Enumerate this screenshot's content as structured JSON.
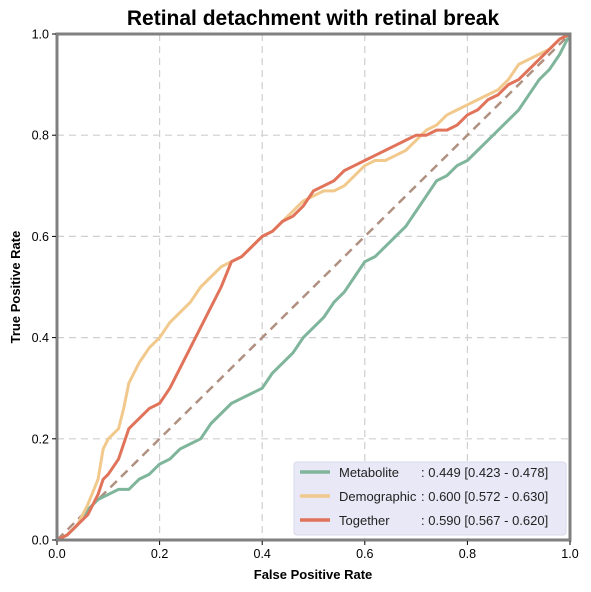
{
  "chart_data": {
    "type": "line",
    "title": "Retinal detachment with retinal break",
    "xlabel": "False Positive Rate",
    "ylabel": "True Positive Rate",
    "xlim": [
      0,
      1
    ],
    "ylim": [
      0,
      1
    ],
    "xticks": [
      "0.0",
      "0.2",
      "0.4",
      "0.6",
      "0.8",
      "1.0"
    ],
    "yticks": [
      "0.0",
      "0.2",
      "0.4",
      "0.6",
      "0.8",
      "1.0"
    ],
    "grid": true,
    "legend_position": "bottom-right",
    "diagonal": {
      "color": "#b09080",
      "style": "dashed",
      "points": [
        [
          0,
          0
        ],
        [
          1,
          1
        ]
      ]
    },
    "series": [
      {
        "name": "Metabolite",
        "legend_label": ": 0.449 [0.423 - 0.478]",
        "color": "#7fb59b",
        "points": [
          [
            0,
            0
          ],
          [
            0.02,
            0.01
          ],
          [
            0.04,
            0.03
          ],
          [
            0.06,
            0.06
          ],
          [
            0.08,
            0.08
          ],
          [
            0.1,
            0.09
          ],
          [
            0.12,
            0.1
          ],
          [
            0.14,
            0.1
          ],
          [
            0.16,
            0.12
          ],
          [
            0.18,
            0.13
          ],
          [
            0.2,
            0.15
          ],
          [
            0.22,
            0.16
          ],
          [
            0.24,
            0.18
          ],
          [
            0.26,
            0.19
          ],
          [
            0.28,
            0.2
          ],
          [
            0.3,
            0.23
          ],
          [
            0.32,
            0.25
          ],
          [
            0.34,
            0.27
          ],
          [
            0.36,
            0.28
          ],
          [
            0.38,
            0.29
          ],
          [
            0.4,
            0.3
          ],
          [
            0.42,
            0.33
          ],
          [
            0.44,
            0.35
          ],
          [
            0.46,
            0.37
          ],
          [
            0.48,
            0.4
          ],
          [
            0.5,
            0.42
          ],
          [
            0.52,
            0.44
          ],
          [
            0.54,
            0.47
          ],
          [
            0.56,
            0.49
          ],
          [
            0.58,
            0.52
          ],
          [
            0.6,
            0.55
          ],
          [
            0.62,
            0.56
          ],
          [
            0.64,
            0.58
          ],
          [
            0.66,
            0.6
          ],
          [
            0.68,
            0.62
          ],
          [
            0.7,
            0.65
          ],
          [
            0.72,
            0.68
          ],
          [
            0.74,
            0.71
          ],
          [
            0.76,
            0.72
          ],
          [
            0.78,
            0.74
          ],
          [
            0.8,
            0.75
          ],
          [
            0.82,
            0.77
          ],
          [
            0.84,
            0.79
          ],
          [
            0.86,
            0.81
          ],
          [
            0.88,
            0.83
          ],
          [
            0.9,
            0.85
          ],
          [
            0.92,
            0.88
          ],
          [
            0.94,
            0.91
          ],
          [
            0.96,
            0.93
          ],
          [
            0.98,
            0.96
          ],
          [
            1.0,
            1.0
          ]
        ]
      },
      {
        "name": "Demographic",
        "legend_label": ": 0.600 [0.572 - 0.630]",
        "color": "#f2c98c",
        "points": [
          [
            0,
            0
          ],
          [
            0.02,
            0.01
          ],
          [
            0.04,
            0.03
          ],
          [
            0.06,
            0.07
          ],
          [
            0.08,
            0.12
          ],
          [
            0.09,
            0.18
          ],
          [
            0.1,
            0.2
          ],
          [
            0.12,
            0.22
          ],
          [
            0.13,
            0.26
          ],
          [
            0.14,
            0.31
          ],
          [
            0.16,
            0.35
          ],
          [
            0.18,
            0.38
          ],
          [
            0.2,
            0.4
          ],
          [
            0.22,
            0.43
          ],
          [
            0.24,
            0.45
          ],
          [
            0.26,
            0.47
          ],
          [
            0.28,
            0.5
          ],
          [
            0.3,
            0.52
          ],
          [
            0.32,
            0.54
          ],
          [
            0.34,
            0.55
          ],
          [
            0.36,
            0.56
          ],
          [
            0.38,
            0.58
          ],
          [
            0.4,
            0.6
          ],
          [
            0.42,
            0.61
          ],
          [
            0.44,
            0.63
          ],
          [
            0.46,
            0.65
          ],
          [
            0.48,
            0.67
          ],
          [
            0.5,
            0.68
          ],
          [
            0.52,
            0.69
          ],
          [
            0.54,
            0.69
          ],
          [
            0.56,
            0.7
          ],
          [
            0.58,
            0.72
          ],
          [
            0.6,
            0.74
          ],
          [
            0.62,
            0.75
          ],
          [
            0.64,
            0.75
          ],
          [
            0.66,
            0.76
          ],
          [
            0.68,
            0.77
          ],
          [
            0.7,
            0.79
          ],
          [
            0.72,
            0.81
          ],
          [
            0.74,
            0.82
          ],
          [
            0.76,
            0.84
          ],
          [
            0.78,
            0.85
          ],
          [
            0.8,
            0.86
          ],
          [
            0.82,
            0.87
          ],
          [
            0.84,
            0.88
          ],
          [
            0.86,
            0.89
          ],
          [
            0.88,
            0.91
          ],
          [
            0.9,
            0.94
          ],
          [
            0.92,
            0.95
          ],
          [
            0.94,
            0.96
          ],
          [
            0.96,
            0.97
          ],
          [
            0.98,
            0.99
          ],
          [
            1.0,
            1.0
          ]
        ]
      },
      {
        "name": "Together",
        "legend_label": ": 0.590 [0.567 - 0.620]",
        "color": "#e0735a",
        "points": [
          [
            0,
            0
          ],
          [
            0.02,
            0.01
          ],
          [
            0.04,
            0.03
          ],
          [
            0.06,
            0.05
          ],
          [
            0.08,
            0.09
          ],
          [
            0.09,
            0.12
          ],
          [
            0.1,
            0.13
          ],
          [
            0.12,
            0.16
          ],
          [
            0.14,
            0.22
          ],
          [
            0.16,
            0.24
          ],
          [
            0.18,
            0.26
          ],
          [
            0.2,
            0.27
          ],
          [
            0.22,
            0.3
          ],
          [
            0.24,
            0.34
          ],
          [
            0.26,
            0.38
          ],
          [
            0.28,
            0.42
          ],
          [
            0.3,
            0.46
          ],
          [
            0.32,
            0.5
          ],
          [
            0.34,
            0.55
          ],
          [
            0.36,
            0.56
          ],
          [
            0.38,
            0.58
          ],
          [
            0.4,
            0.6
          ],
          [
            0.42,
            0.61
          ],
          [
            0.44,
            0.63
          ],
          [
            0.46,
            0.64
          ],
          [
            0.48,
            0.66
          ],
          [
            0.5,
            0.69
          ],
          [
            0.52,
            0.7
          ],
          [
            0.54,
            0.71
          ],
          [
            0.56,
            0.73
          ],
          [
            0.58,
            0.74
          ],
          [
            0.6,
            0.75
          ],
          [
            0.62,
            0.76
          ],
          [
            0.64,
            0.77
          ],
          [
            0.66,
            0.78
          ],
          [
            0.68,
            0.79
          ],
          [
            0.7,
            0.8
          ],
          [
            0.72,
            0.8
          ],
          [
            0.74,
            0.81
          ],
          [
            0.76,
            0.81
          ],
          [
            0.78,
            0.82
          ],
          [
            0.8,
            0.84
          ],
          [
            0.82,
            0.85
          ],
          [
            0.84,
            0.87
          ],
          [
            0.86,
            0.88
          ],
          [
            0.88,
            0.9
          ],
          [
            0.9,
            0.91
          ],
          [
            0.92,
            0.93
          ],
          [
            0.94,
            0.95
          ],
          [
            0.96,
            0.97
          ],
          [
            0.98,
            0.99
          ],
          [
            1.0,
            1.0
          ]
        ]
      }
    ]
  }
}
